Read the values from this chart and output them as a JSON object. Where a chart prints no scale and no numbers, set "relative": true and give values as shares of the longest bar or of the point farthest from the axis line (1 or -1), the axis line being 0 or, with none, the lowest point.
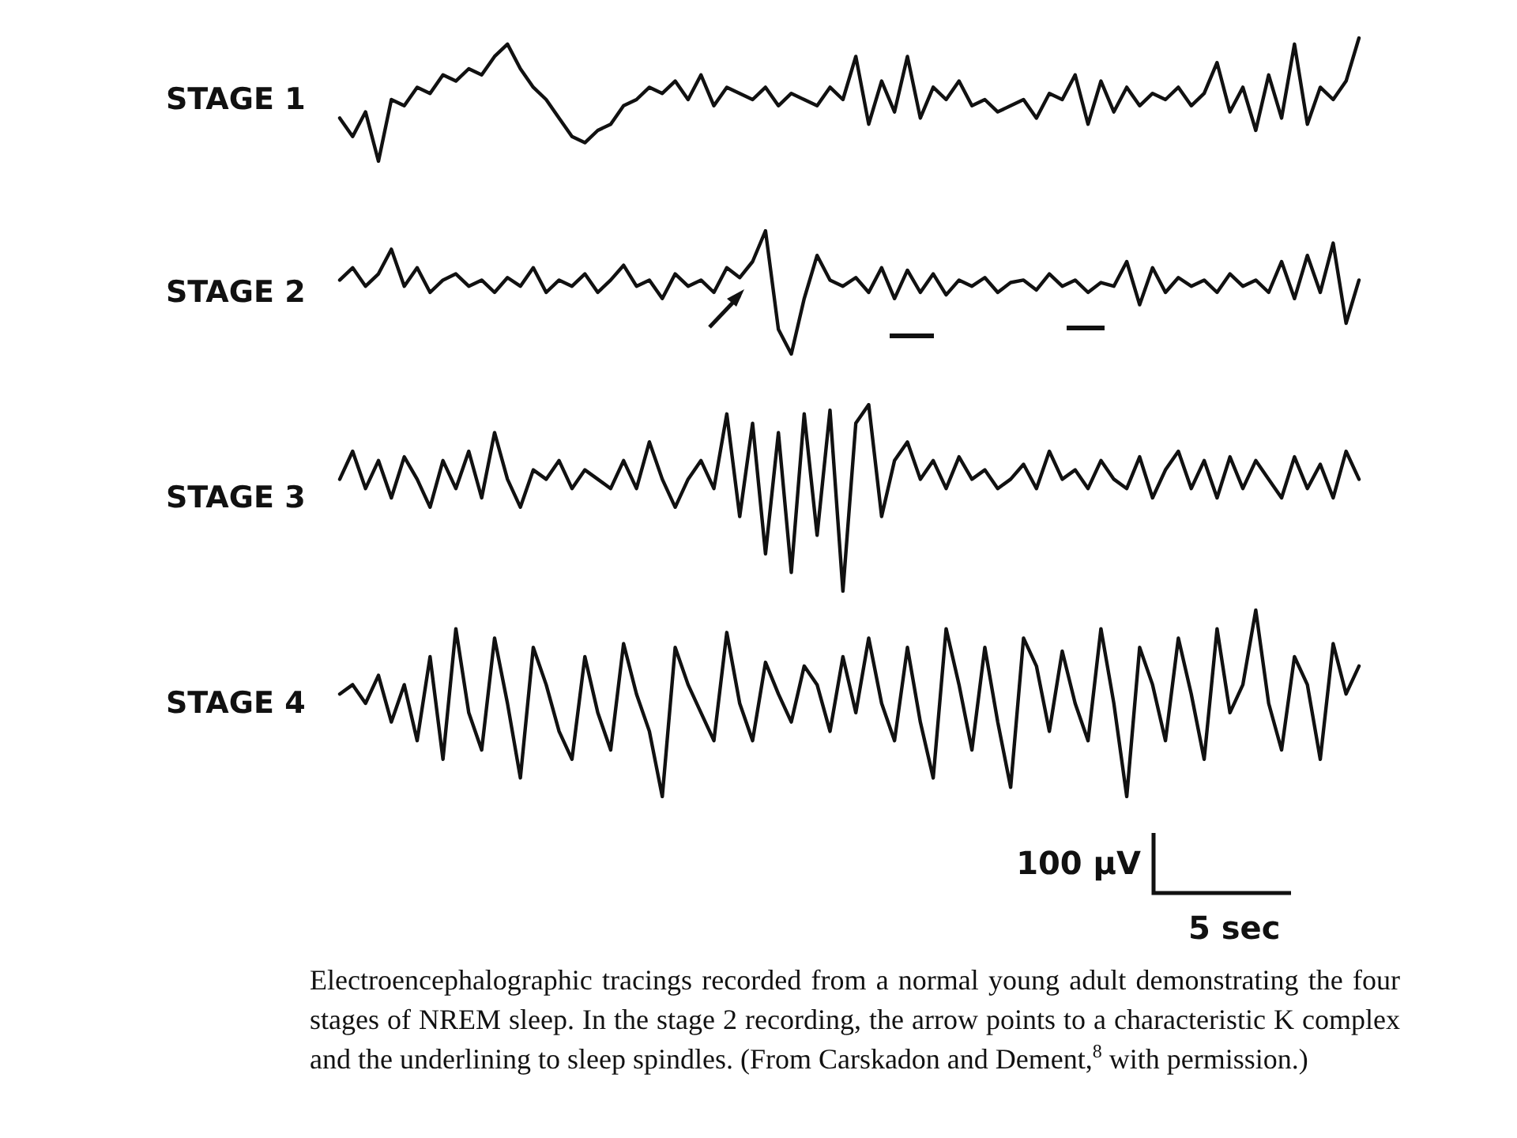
{
  "chart_data": [
    {
      "type": "line",
      "relative": true,
      "categories": [
        null,
        null,
        null,
        null,
        null,
        null,
        null,
        null,
        null,
        null,
        null,
        null,
        null,
        null,
        null,
        null,
        null,
        null,
        null,
        null,
        null,
        null,
        null,
        null,
        null,
        null,
        null,
        null,
        null,
        null,
        null,
        null,
        null,
        null,
        null,
        null,
        null,
        null,
        null,
        null,
        null,
        null,
        null,
        null,
        null,
        null,
        null,
        null,
        null,
        null,
        null,
        null,
        null,
        null,
        null,
        null,
        null,
        null,
        null,
        null,
        null,
        null,
        null,
        null,
        null,
        null,
        null,
        null,
        null,
        null,
        null,
        null,
        null,
        null,
        null,
        null,
        null,
        null,
        null,
        null
      ],
      "series": [
        {
          "name": "STAGE 1",
          "color": "#111111",
          "values": [
            0.35,
            0.2,
            0.4,
            0,
            0.5,
            0.45,
            0.6,
            0.55,
            0.7,
            0.65,
            0.75,
            0.7,
            0.85,
            0.95,
            0.75,
            0.6,
            0.5,
            0.35,
            0.2,
            0.15,
            0.25,
            0.3,
            0.45,
            0.5,
            0.6,
            0.55,
            0.65,
            0.5,
            0.7,
            0.45,
            0.6,
            0.55,
            0.5,
            0.6,
            0.45,
            0.55,
            0.5,
            0.45,
            0.6,
            0.5,
            0.85,
            0.3,
            0.65,
            0.4,
            0.85,
            0.35,
            0.6,
            0.5,
            0.65,
            0.45,
            0.5,
            0.4,
            0.45,
            0.5,
            0.35,
            0.55,
            0.5,
            0.7,
            0.3,
            0.65,
            0.4,
            0.6,
            0.45,
            0.55,
            0.5,
            0.6,
            0.45,
            0.55,
            0.8,
            0.4,
            0.6,
            0.25,
            0.7,
            0.35,
            0.95,
            0.3,
            0.6,
            0.5,
            0.65,
            1.0
          ]
        }
      ],
      "tick_labels": false,
      "legend": false,
      "line_style": "solid"
    },
    {
      "type": "line",
      "relative": true,
      "categories": [
        null,
        null,
        null,
        null,
        null,
        null,
        null,
        null,
        null,
        null,
        null,
        null,
        null,
        null,
        null,
        null,
        null,
        null,
        null,
        null,
        null,
        null,
        null,
        null,
        null,
        null,
        null,
        null,
        null,
        null,
        null,
        null,
        null,
        null,
        null,
        null,
        null,
        null,
        null,
        null,
        null,
        null,
        null,
        null,
        null,
        null,
        null,
        null,
        null,
        null,
        null,
        null,
        null,
        null,
        null,
        null,
        null,
        null,
        null,
        null,
        null,
        null,
        null,
        null,
        null,
        null,
        null,
        null,
        null,
        null,
        null,
        null,
        null,
        null,
        null,
        null,
        null,
        null,
        null,
        null
      ],
      "series": [
        {
          "name": "STAGE 2",
          "color": "#111111",
          "values": [
            0.6,
            0.7,
            0.55,
            0.65,
            0.85,
            0.55,
            0.7,
            0.5,
            0.6,
            0.65,
            0.55,
            0.6,
            0.5,
            0.62,
            0.55,
            0.7,
            0.5,
            0.6,
            0.55,
            0.65,
            0.5,
            0.6,
            0.72,
            0.55,
            0.6,
            0.45,
            0.65,
            0.55,
            0.6,
            0.5,
            0.7,
            0.62,
            0.75,
            1.0,
            0.2,
            0.0,
            0.45,
            0.8,
            0.6,
            0.55,
            0.62,
            0.5,
            0.7,
            0.45,
            0.68,
            0.5,
            0.65,
            0.48,
            0.6,
            0.55,
            0.62,
            0.5,
            0.58,
            0.6,
            0.52,
            0.65,
            0.55,
            0.6,
            0.5,
            0.58,
            0.55,
            0.75,
            0.4,
            0.7,
            0.5,
            0.62,
            0.55,
            0.6,
            0.5,
            0.65,
            0.55,
            0.6,
            0.5,
            0.75,
            0.45,
            0.8,
            0.5,
            0.9,
            0.25,
            0.6
          ]
        }
      ],
      "tick_labels": false,
      "legend": false,
      "line_style": "solid"
    },
    {
      "type": "line",
      "relative": true,
      "categories": [
        null,
        null,
        null,
        null,
        null,
        null,
        null,
        null,
        null,
        null,
        null,
        null,
        null,
        null,
        null,
        null,
        null,
        null,
        null,
        null,
        null,
        null,
        null,
        null,
        null,
        null,
        null,
        null,
        null,
        null,
        null,
        null,
        null,
        null,
        null,
        null,
        null,
        null,
        null,
        null,
        null,
        null,
        null,
        null,
        null,
        null,
        null,
        null,
        null,
        null,
        null,
        null,
        null,
        null,
        null,
        null,
        null,
        null,
        null,
        null,
        null,
        null,
        null,
        null,
        null,
        null,
        null,
        null,
        null,
        null,
        null,
        null,
        null,
        null,
        null,
        null,
        null,
        null,
        null,
        null
      ],
      "series": [
        {
          "name": "STAGE 3",
          "color": "#111111",
          "values": [
            0.6,
            0.75,
            0.55,
            0.7,
            0.5,
            0.72,
            0.6,
            0.45,
            0.7,
            0.55,
            0.75,
            0.5,
            0.85,
            0.6,
            0.45,
            0.65,
            0.6,
            0.7,
            0.55,
            0.65,
            0.6,
            0.55,
            0.7,
            0.55,
            0.8,
            0.6,
            0.45,
            0.6,
            0.7,
            0.55,
            0.95,
            0.4,
            0.9,
            0.2,
            0.85,
            0.1,
            0.95,
            0.3,
            0.97,
            0.0,
            0.9,
            1.0,
            0.4,
            0.7,
            0.8,
            0.6,
            0.7,
            0.55,
            0.72,
            0.6,
            0.65,
            0.55,
            0.6,
            0.68,
            0.55,
            0.75,
            0.6,
            0.65,
            0.55,
            0.7,
            0.6,
            0.55,
            0.72,
            0.5,
            0.65,
            0.75,
            0.55,
            0.7,
            0.5,
            0.72,
            0.55,
            0.7,
            0.6,
            0.5,
            0.72,
            0.55,
            0.68,
            0.5,
            0.75,
            0.6
          ]
        }
      ],
      "tick_labels": false,
      "legend": false,
      "line_style": "solid"
    },
    {
      "type": "line",
      "relative": true,
      "categories": [
        null,
        null,
        null,
        null,
        null,
        null,
        null,
        null,
        null,
        null,
        null,
        null,
        null,
        null,
        null,
        null,
        null,
        null,
        null,
        null,
        null,
        null,
        null,
        null,
        null,
        null,
        null,
        null,
        null,
        null,
        null,
        null,
        null,
        null,
        null,
        null,
        null,
        null,
        null,
        null,
        null,
        null,
        null,
        null,
        null,
        null,
        null,
        null,
        null,
        null,
        null,
        null,
        null,
        null,
        null,
        null,
        null,
        null,
        null,
        null,
        null,
        null,
        null,
        null,
        null,
        null,
        null,
        null,
        null,
        null,
        null,
        null,
        null,
        null,
        null,
        null,
        null,
        null,
        null,
        null
      ],
      "series": [
        {
          "name": "STAGE 4",
          "color": "#111111",
          "values": [
            0.55,
            0.6,
            0.5,
            0.65,
            0.4,
            0.6,
            0.3,
            0.75,
            0.2,
            0.9,
            0.45,
            0.25,
            0.85,
            0.5,
            0.1,
            0.8,
            0.6,
            0.35,
            0.2,
            0.75,
            0.45,
            0.25,
            0.82,
            0.55,
            0.35,
            0.0,
            0.8,
            0.6,
            0.45,
            0.3,
            0.88,
            0.5,
            0.3,
            0.72,
            0.55,
            0.4,
            0.7,
            0.6,
            0.35,
            0.75,
            0.45,
            0.85,
            0.5,
            0.3,
            0.8,
            0.4,
            0.1,
            0.9,
            0.6,
            0.25,
            0.8,
            0.4,
            0.05,
            0.85,
            0.7,
            0.35,
            0.78,
            0.5,
            0.3,
            0.9,
            0.5,
            0.0,
            0.8,
            0.6,
            0.3,
            0.85,
            0.55,
            0.2,
            0.9,
            0.45,
            0.6,
            1.0,
            0.5,
            0.25,
            0.75,
            0.6,
            0.2,
            0.82,
            0.55,
            0.7
          ]
        }
      ],
      "tick_labels": false,
      "legend": false,
      "line_style": "solid",
      "annotations": [
        "100 µV",
        "5 sec",
        "Electroencephalographic tracings recorded from a normal young adult demonstrating the four stages of NREM sleep. In the stage 2 recording, the arrow points to a characteristic K complex and the underlining to sleep spindles. (From Carskadon and Dement,$^{8}$ with permission.)"
      ]
    }
  ]
}
